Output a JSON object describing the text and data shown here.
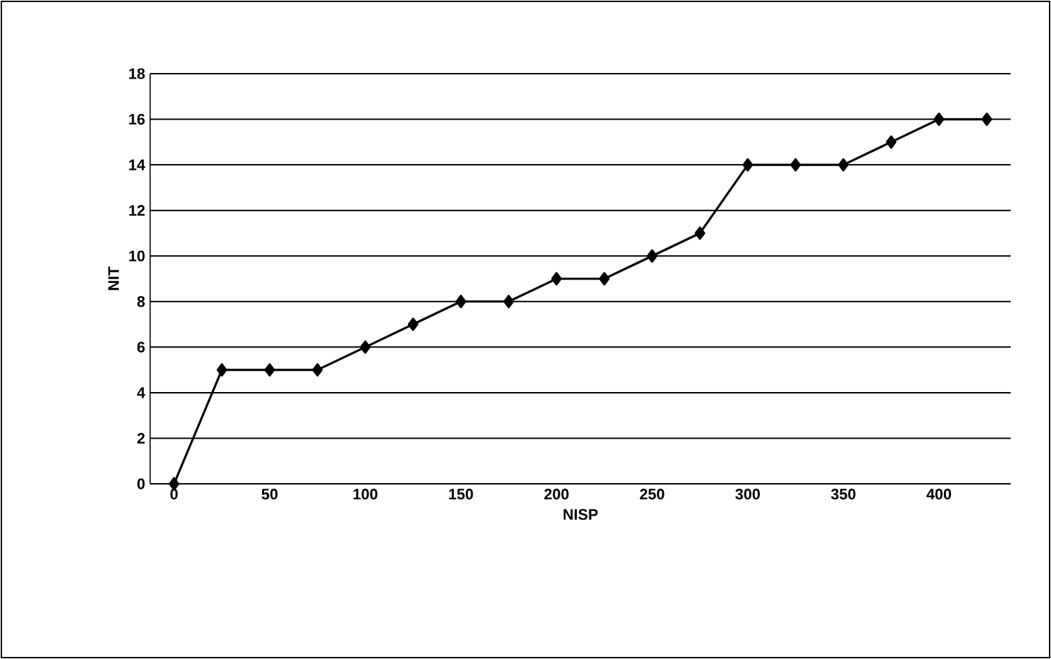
{
  "chart_data": {
    "type": "line",
    "xlabel": "NISP",
    "ylabel": "NIT",
    "x": [
      0,
      25,
      50,
      75,
      100,
      125,
      150,
      175,
      200,
      225,
      250,
      275,
      300,
      325,
      350,
      375,
      400,
      425
    ],
    "values": [
      0,
      5,
      5,
      5,
      6,
      7,
      8,
      8,
      9,
      9,
      10,
      11,
      14,
      14,
      14,
      15,
      16,
      16
    ],
    "color": "#000000",
    "marker": "diamond",
    "line_style": "solid",
    "xlim": [
      -12.5,
      437.5
    ],
    "xticks": [
      0,
      50,
      100,
      150,
      200,
      250,
      300,
      350,
      400
    ],
    "ylim": [
      0,
      18
    ],
    "yticks": [
      0,
      2,
      4,
      6,
      8,
      10,
      12,
      14,
      16,
      18
    ],
    "grid": "y"
  }
}
